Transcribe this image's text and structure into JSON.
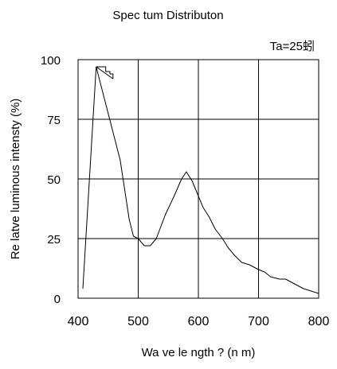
{
  "chart_data": {
    "type": "line",
    "title": "Spec tum Distributon",
    "annotation": "Ta=25蚓",
    "xlabel": "Wa ve le ngth ? (n m)",
    "ylabel": "Re latve luminous intensty (%)",
    "xlim": [
      400,
      800
    ],
    "ylim": [
      0,
      100
    ],
    "xticks": [
      400,
      500,
      600,
      700,
      800
    ],
    "xtick_labels": [
      "400",
      "500",
      "600",
      "700",
      "800"
    ],
    "yticks": [
      0,
      25,
      50,
      75,
      100
    ],
    "ytick_labels": [
      "0",
      "25",
      "50",
      "75",
      "100"
    ],
    "grid": true,
    "line_color": "#000000",
    "series": [
      {
        "points": [
          [
            408,
            4
          ],
          [
            430,
            97
          ],
          [
            440,
            97
          ],
          [
            446,
            97
          ],
          [
            446,
            95
          ],
          [
            453,
            95
          ],
          [
            453,
            94
          ],
          [
            458,
            94
          ],
          [
            458,
            92
          ],
          [
            430,
            97
          ],
          [
            470,
            58
          ],
          [
            485,
            33
          ],
          [
            492,
            26
          ],
          [
            500,
            25
          ],
          [
            510,
            22
          ],
          [
            520,
            22
          ],
          [
            530,
            25
          ],
          [
            545,
            35
          ],
          [
            560,
            43
          ],
          [
            572,
            50
          ],
          [
            580,
            53
          ],
          [
            590,
            49
          ],
          [
            598,
            44
          ],
          [
            608,
            38
          ],
          [
            618,
            34
          ],
          [
            628,
            29
          ],
          [
            640,
            25
          ],
          [
            650,
            21
          ],
          [
            660,
            18
          ],
          [
            672,
            15
          ],
          [
            685,
            14
          ],
          [
            700,
            12
          ],
          [
            710,
            11
          ],
          [
            720,
            9
          ],
          [
            735,
            8
          ],
          [
            745,
            8
          ],
          [
            760,
            6
          ],
          [
            775,
            4
          ],
          [
            800,
            2
          ]
        ]
      }
    ]
  }
}
